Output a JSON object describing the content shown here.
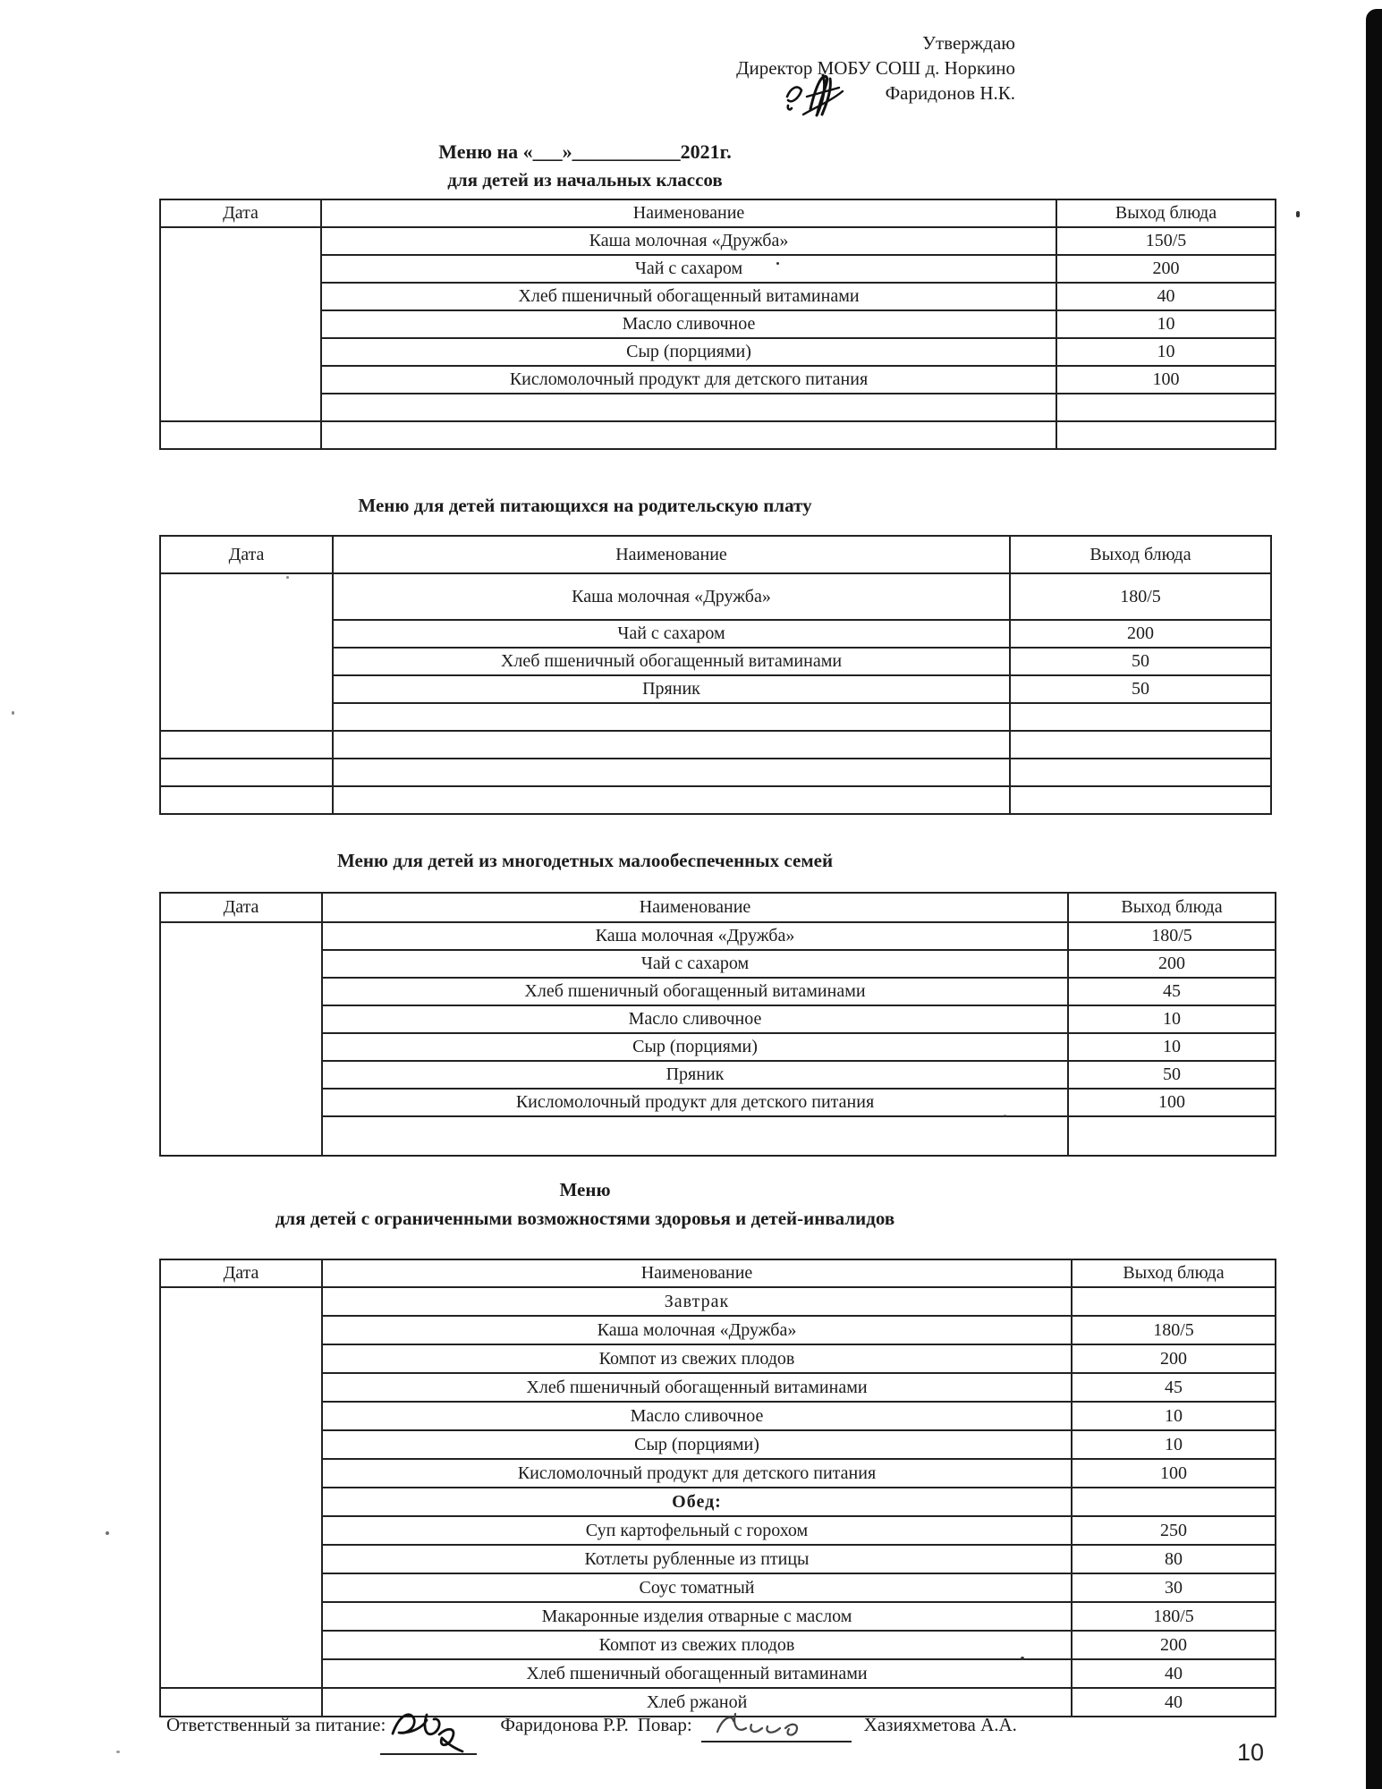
{
  "approval": {
    "line1": "Утверждаю",
    "line2": "Директор МОБУ СОШ д. Норкино",
    "line3": "Фаридонов Н.К."
  },
  "doc_title": {
    "line1": "Меню на «___»___________2021г.",
    "line2": "для детей из начальных классов"
  },
  "tables": [
    {
      "headers": [
        "Дата",
        "Наименование",
        "Выход блюда"
      ],
      "date_spans": [
        7,
        1
      ],
      "rows": [
        {
          "name": "Каша молочная «Дружба»",
          "out": "150/5"
        },
        {
          "name": "Чай с сахаром",
          "out": "200"
        },
        {
          "name": "Хлеб пшеничный обогащенный витаминами",
          "out": "40"
        },
        {
          "name": "Масло сливочное",
          "out": "10"
        },
        {
          "name": "Сыр (порциями)",
          "out": "10"
        },
        {
          "name": "Кисломолочный продукт для детского питания",
          "out": "100"
        },
        {
          "name": "",
          "out": ""
        },
        {
          "name": "",
          "out": ""
        }
      ]
    },
    {
      "title": "Меню для детей питающихся на родительскую плату",
      "headers": [
        "Дата",
        "Наименование",
        "Выход блюда"
      ],
      "date_spans": [
        5,
        1,
        1,
        1
      ],
      "rows": [
        {
          "name": "Каша молочная «Дружба»",
          "out": "180/5",
          "cls": "tall"
        },
        {
          "name": "Чай с сахаром",
          "out": "200"
        },
        {
          "name": "Хлеб пшеничный обогащенный витаминами",
          "out": "50"
        },
        {
          "name": "Пряник",
          "out": "50"
        },
        {
          "name": "",
          "out": ""
        },
        {
          "name": "",
          "out": ""
        },
        {
          "name": "",
          "out": ""
        },
        {
          "name": "",
          "out": ""
        }
      ]
    },
    {
      "title": "Меню для детей из многодетных малообеспеченных семей",
      "headers": [
        "Дата",
        "Наименование",
        "Выход блюда"
      ],
      "date_spans": [
        8
      ],
      "rows": [
        {
          "name": "Каша молочная «Дружба»",
          "out": "180/5"
        },
        {
          "name": "Чай с сахаром",
          "out": "200"
        },
        {
          "name": "Хлеб пшеничный обогащенный витаминами",
          "out": "45"
        },
        {
          "name": "Масло сливочное",
          "out": "10"
        },
        {
          "name": "Сыр (порциями)",
          "out": "10"
        },
        {
          "name": "Пряник",
          "out": "50"
        },
        {
          "name": "Кисломолочный продукт для детского питания",
          "out": "100"
        },
        {
          "name": "",
          "out": "",
          "cls": "spacer-tall"
        }
      ]
    },
    {
      "title_line1": "Меню",
      "title_line2": "для детей с ограниченными возможностями здоровья и детей-инвалидов",
      "headers": [
        "Дата",
        "Наименование",
        "Выход блюда"
      ],
      "date_spans": [
        14,
        1
      ],
      "rows": [
        {
          "name": "Завтрак",
          "out": "",
          "sub": true
        },
        {
          "name": "Каша молочная «Дружба»",
          "out": "180/5"
        },
        {
          "name": "Компот из свежих плодов",
          "out": "200"
        },
        {
          "name": "Хлеб пшеничный обогащенный витаминами",
          "out": "45"
        },
        {
          "name": "Масло сливочное",
          "out": "10"
        },
        {
          "name": "Сыр (порциями)",
          "out": "10"
        },
        {
          "name": "Кисломолочный продукт для детского питания",
          "out": "100"
        },
        {
          "name": "Обед:",
          "out": "",
          "sub": true,
          "bold": true
        },
        {
          "name": "Суп картофельный с горохом",
          "out": "250"
        },
        {
          "name": "Котлеты рубленные из птицы",
          "out": "80"
        },
        {
          "name": "Соус томатный",
          "out": "30"
        },
        {
          "name": "Макаронные изделия отварные с маслом",
          "out": "180/5"
        },
        {
          "name": "Компот из свежих плодов",
          "out": "200"
        },
        {
          "name": "Хлеб пшеничный обогащенный витаминами",
          "out": "40"
        },
        {
          "name": "Хлеб ржаной",
          "out": "40"
        }
      ]
    }
  ],
  "footer": {
    "responsible_label": "Ответственный за питание:",
    "responsible_name": "Фаридонова Р.Р.",
    "cook_label": "Повар:",
    "cook_name": "Хазияхметова А.А."
  },
  "page_number": "10"
}
